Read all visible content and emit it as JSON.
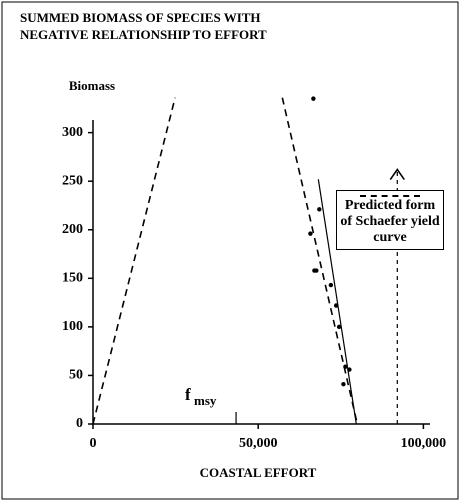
{
  "chart_data": {
    "type": "scatter",
    "title": [
      "SUMMED BIOMASS OF SPECIES WITH",
      "NEGATIVE RELATIONSHIP TO EFFORT"
    ],
    "y_label": "Biomass",
    "x_label": "COASTAL EFFORT",
    "xlim": [
      0,
      102000
    ],
    "ylim": [
      0,
      313
    ],
    "xticks": [
      0,
      {
        "value": 50000,
        "label": "50,000"
      },
      {
        "value": 100000,
        "label": "100,000"
      }
    ],
    "yticks": [
      0,
      50,
      100,
      150,
      200,
      250,
      300
    ],
    "points": {
      "color": "#000000",
      "x": [
        66700,
        68500,
        65800,
        67600,
        67000,
        72000,
        73600,
        74500,
        76400,
        77600,
        75800
      ],
      "y": [
        335,
        221,
        196,
        158,
        158,
        143,
        122,
        100,
        59,
        56,
        41
      ]
    },
    "series": [
      {
        "name": "Predicted form of Schaefer yield curve",
        "style": "dashed",
        "color": "#000000",
        "x": [
          0,
          24850,
          null,
          57300,
          80000
        ],
        "y": [
          0,
          336,
          null,
          336,
          0
        ]
      },
      {
        "style": "solid",
        "color": "#000000",
        "x": [
          68200,
          79700
        ],
        "y": [
          252,
          0
        ]
      }
    ],
    "annotations": [
      {
        "text": "f",
        "subscript": "msy",
        "x": 43300
      },
      {
        "arrow_x": 92100,
        "arrow_y": [
          0,
          262
        ]
      }
    ]
  }
}
